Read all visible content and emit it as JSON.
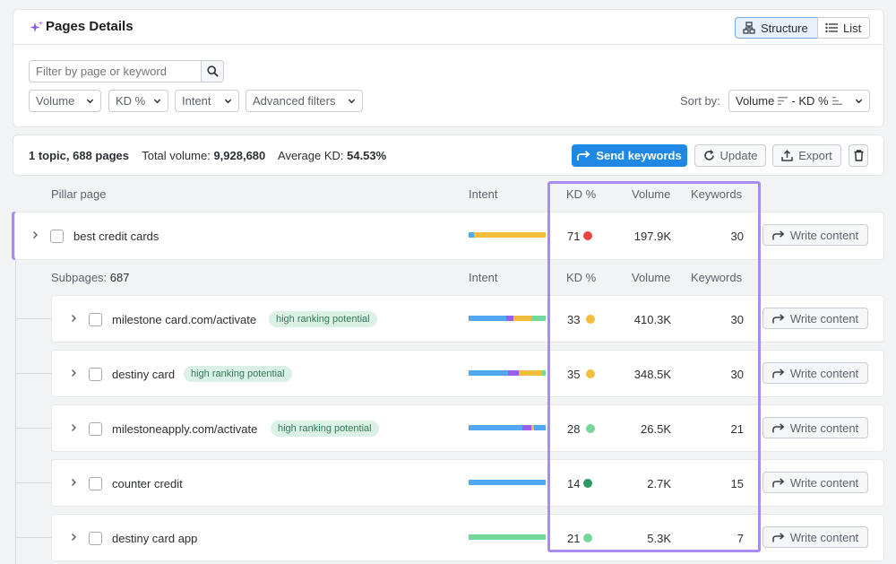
{
  "header": {
    "title": "Pages Details",
    "view_structure": "Structure",
    "view_list": "List",
    "search_placeholder": "Filter by page or keyword",
    "filters": [
      "Volume",
      "KD %",
      "Intent",
      "Advanced filters"
    ],
    "sort_label": "Sort by:",
    "sort_value": "Volume",
    "sort_value2": "- KD %"
  },
  "summary": {
    "topic": "1 topic, 688 pages",
    "volume_label": "Total volume:",
    "volume_value": "9,928,680",
    "kd_label": "Average KD:",
    "kd_value": "54.53%",
    "send": "Send keywords",
    "update": "Update",
    "export": "Export"
  },
  "pillar_headers": {
    "page": "Pillar page",
    "intent": "Intent",
    "kd": "KD %",
    "volume": "Volume",
    "keywords": "Keywords"
  },
  "pillar": {
    "name": "best credit cards",
    "kd": "71",
    "volume": "197.9K",
    "keywords": "30",
    "action": "Write content"
  },
  "sub_headers": {
    "label": "Subpages: ",
    "count": "687",
    "intent": "Intent",
    "kd": "KD %",
    "volume": "Volume",
    "keywords": "Keywords"
  },
  "subpages": [
    {
      "name": "milestone card.com/activate",
      "badge": "high ranking potential",
      "kd": "33",
      "volume": "410.3K",
      "keywords": "30",
      "action": "Write content"
    },
    {
      "name": "destiny card",
      "badge": "high ranking potential",
      "kd": "35",
      "volume": "348.5K",
      "keywords": "30",
      "action": "Write content"
    },
    {
      "name": "milestoneapply.com/activate",
      "badge": "high ranking potential",
      "kd": "28",
      "volume": "26.5K",
      "keywords": "21",
      "action": "Write content"
    },
    {
      "name": "counter credit",
      "badge": "",
      "kd": "14",
      "volume": "2.7K",
      "keywords": "15",
      "action": "Write content"
    },
    {
      "name": "destiny card app",
      "badge": "",
      "kd": "21",
      "volume": "5.3K",
      "keywords": "7",
      "action": "Write content"
    }
  ],
  "colors": {
    "accent_blue": "#1f88e5",
    "highlight": "#a98cf0",
    "kd_red": "#e8463f",
    "kd_yellow": "#f2be3b",
    "kd_lightgreen": "#73d99a",
    "kd_darkgreen": "#2d9a64",
    "intent_informational": "#4fa6f2",
    "intent_navigational": "#9b5ee8",
    "intent_commercial": "#f2be3b",
    "intent_transactional": "#73d99a"
  },
  "icons": [
    "sparkle-icon",
    "structure-icon",
    "list-icon",
    "search-icon",
    "chevron-down-icon",
    "sort-desc-icon",
    "send-icon",
    "refresh-icon",
    "export-icon",
    "trash-icon",
    "chevron-right-icon",
    "write-arrow-icon"
  ]
}
